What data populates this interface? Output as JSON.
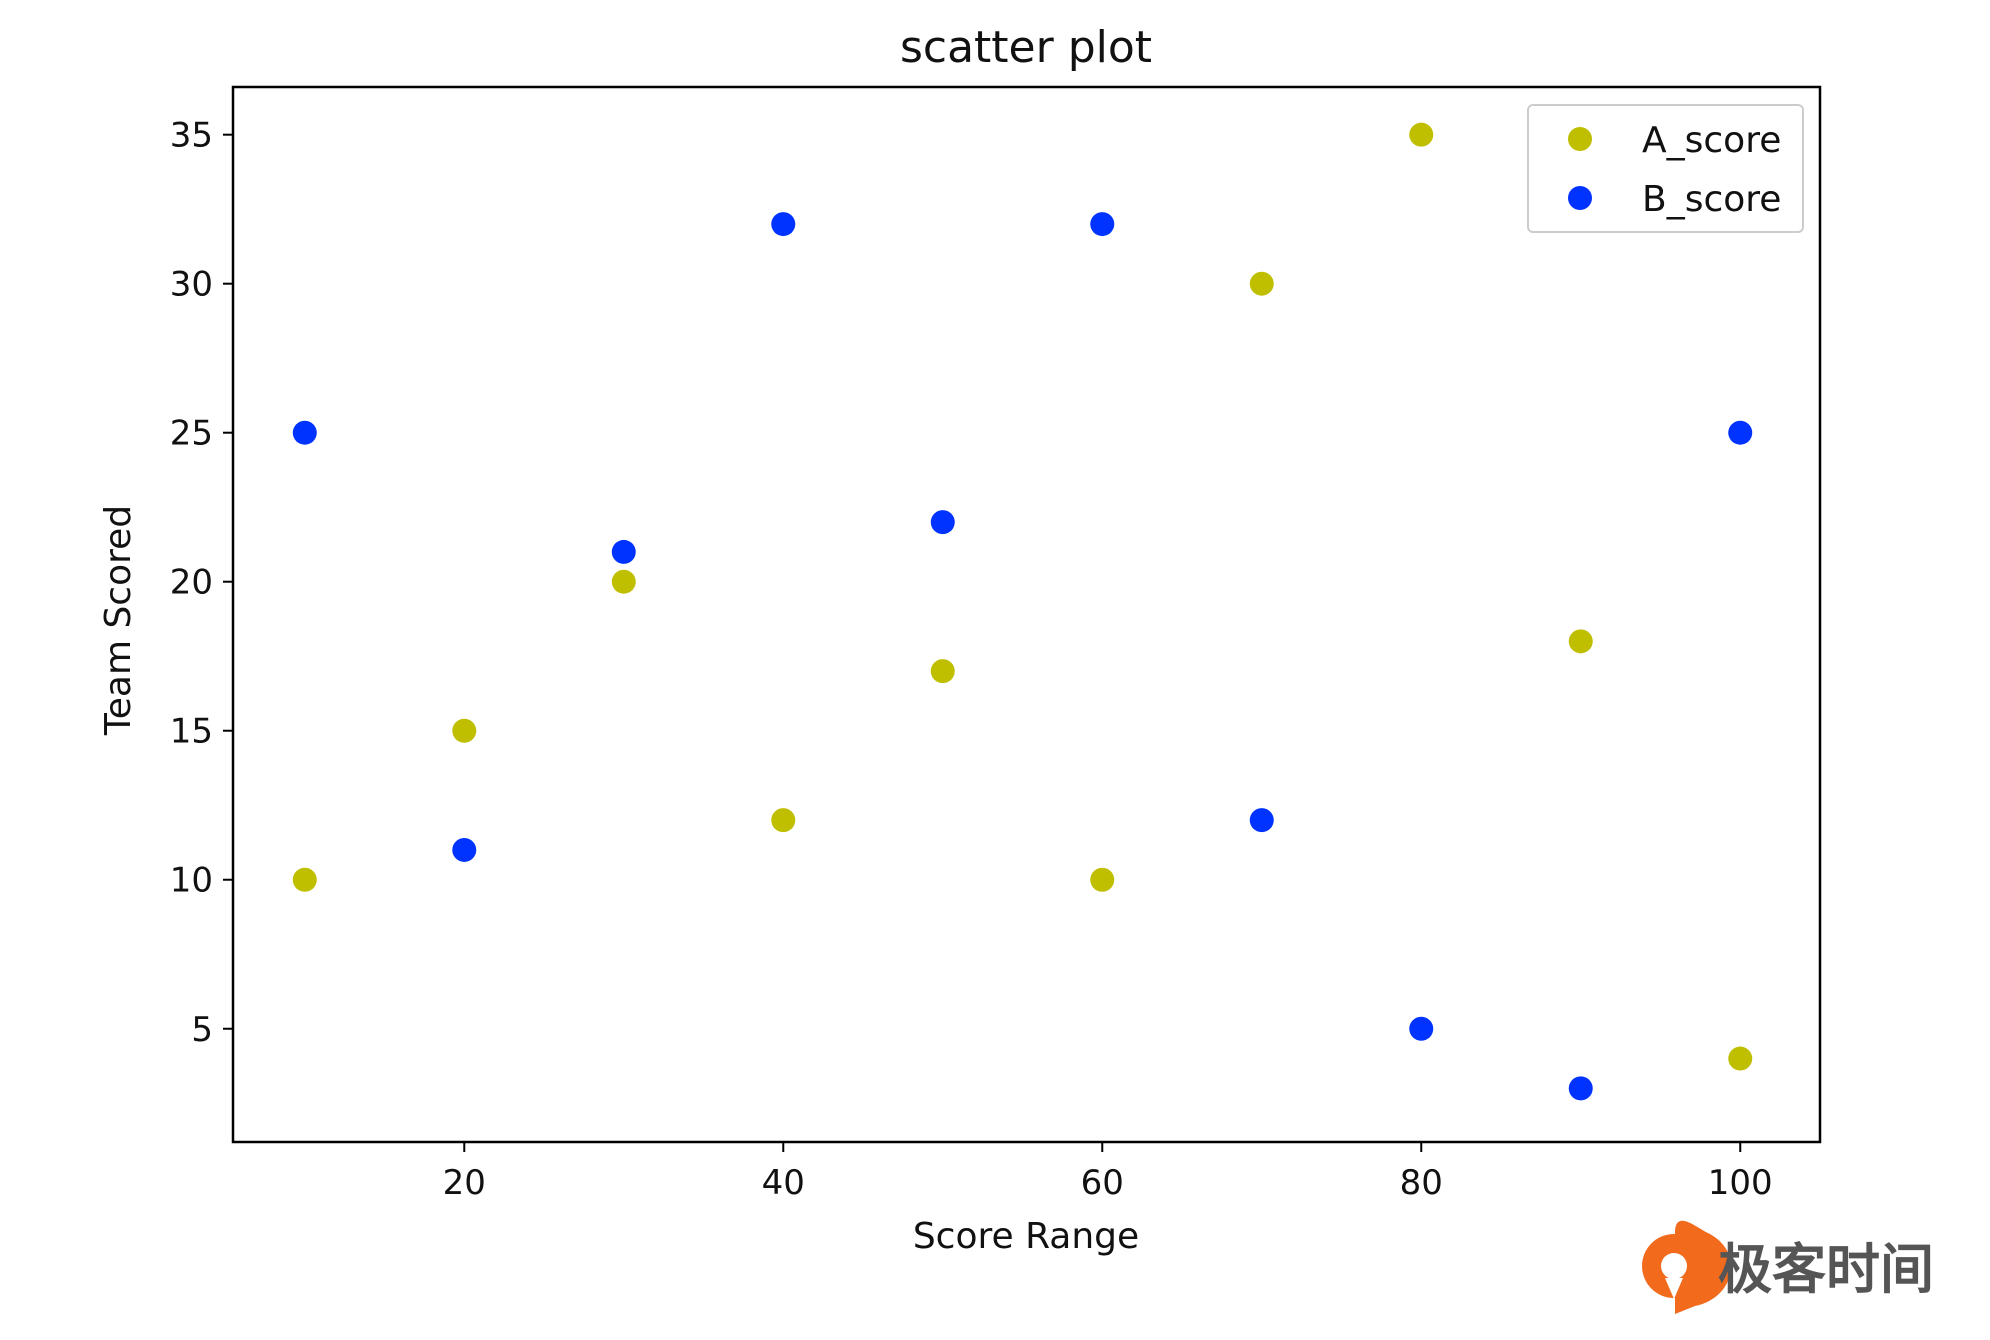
{
  "chart_data": {
    "type": "scatter",
    "title": "scatter plot",
    "xlabel": "Score Range",
    "ylabel": "Team Scored",
    "xlim": [
      5.5,
      105
    ],
    "ylim": [
      1.2,
      36.6
    ],
    "xticks": [
      20,
      40,
      60,
      80,
      100
    ],
    "yticks": [
      5,
      10,
      15,
      20,
      25,
      30,
      35
    ],
    "grid": false,
    "legend_position": "top-right",
    "series": [
      {
        "name": "A_score",
        "color": "#bfbf00",
        "x": [
          10,
          20,
          30,
          40,
          50,
          60,
          70,
          80,
          90,
          100
        ],
        "y": [
          10,
          15,
          20,
          12,
          17,
          10,
          30,
          35,
          18,
          4
        ]
      },
      {
        "name": "B_score",
        "color": "#0033ff",
        "x": [
          10,
          20,
          30,
          40,
          50,
          60,
          70,
          80,
          90,
          100
        ],
        "y": [
          25,
          11,
          21,
          32,
          22,
          32,
          12,
          5,
          3,
          25
        ]
      }
    ]
  },
  "watermark": {
    "text": "极客时间",
    "icon": "geektime-logo-icon",
    "color": "#f26b1d"
  }
}
